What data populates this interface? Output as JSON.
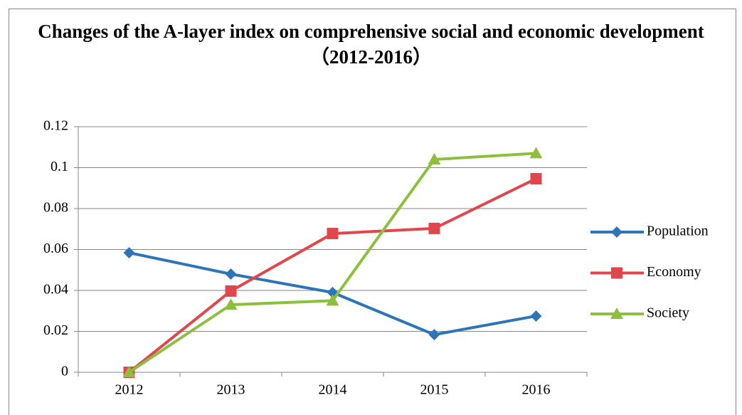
{
  "chart_data": {
    "type": "line",
    "title": "Changes of the A-layer index on comprehensive social and economic development （2012-2016）",
    "categories": [
      "2012",
      "2013",
      "2014",
      "2015",
      "2016"
    ],
    "series": [
      {
        "name": "Population",
        "color": "#2e75b6",
        "marker": "diamond",
        "values": [
          0.0584,
          0.048,
          0.039,
          0.0184,
          0.0275
        ]
      },
      {
        "name": "Economy",
        "color": "#e0474c",
        "marker": "square",
        "values": [
          0,
          0.0397,
          0.0678,
          0.0703,
          0.0946
        ]
      },
      {
        "name": "Society",
        "color": "#8dbf3f",
        "marker": "triangle",
        "values": [
          0,
          0.033,
          0.035,
          0.104,
          0.107
        ]
      }
    ],
    "ylim": [
      0,
      0.12
    ],
    "yticks": [
      0,
      0.02,
      0.04,
      0.06,
      0.08,
      0.1,
      0.12
    ],
    "grid": true,
    "legend": "right"
  }
}
